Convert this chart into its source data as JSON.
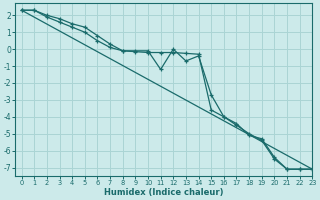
{
  "xlabel": "Humidex (Indice chaleur)",
  "background_color": "#cceaea",
  "grid_color": "#aad4d4",
  "line_color": "#1a6b6b",
  "xlim": [
    -0.5,
    23
  ],
  "ylim": [
    -7.5,
    2.7
  ],
  "xticks": [
    0,
    1,
    2,
    3,
    4,
    5,
    6,
    7,
    8,
    9,
    10,
    11,
    12,
    13,
    14,
    15,
    16,
    17,
    18,
    19,
    20,
    21,
    22,
    23
  ],
  "yticks": [
    2,
    1,
    0,
    -1,
    -2,
    -3,
    -4,
    -5,
    -6,
    -7
  ],
  "line1_x": [
    0,
    1,
    2,
    3,
    4,
    5,
    6,
    7,
    8,
    9,
    10,
    11,
    12,
    13,
    14,
    15,
    16,
    17,
    18,
    19,
    20,
    21,
    22,
    23
  ],
  "line1_y": [
    2.3,
    2.3,
    2.0,
    1.8,
    1.5,
    1.3,
    0.8,
    0.3,
    -0.1,
    -0.1,
    -0.1,
    -1.2,
    0.0,
    -0.7,
    -0.4,
    -2.7,
    -4.0,
    -4.4,
    -5.1,
    -5.3,
    -6.4,
    -7.1,
    -7.1,
    -7.1
  ],
  "line2_x": [
    0,
    1,
    2,
    3,
    4,
    5,
    6,
    7,
    8,
    9,
    10,
    11,
    12,
    13,
    14,
    15,
    16,
    17,
    18,
    19,
    20,
    21,
    22,
    23
  ],
  "line2_y": [
    2.3,
    2.3,
    1.9,
    1.6,
    1.3,
    1.0,
    0.5,
    0.1,
    -0.1,
    -0.15,
    -0.2,
    -0.2,
    -0.2,
    -0.25,
    -0.3,
    -3.6,
    -4.0,
    -4.5,
    -5.0,
    -5.4,
    -6.5,
    -7.1,
    -7.1,
    -7.1
  ],
  "line3_x": [
    0,
    23
  ],
  "line3_y": [
    2.3,
    -7.1
  ]
}
